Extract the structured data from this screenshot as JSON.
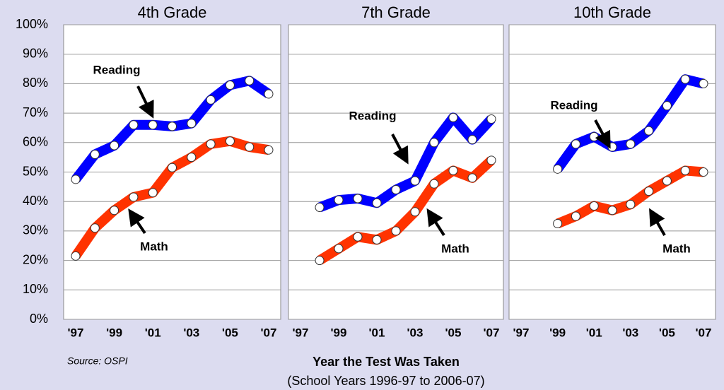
{
  "chart_data": [
    {
      "type": "line",
      "title": "4th Grade",
      "categories": [
        "'97",
        null,
        "'99",
        null,
        "'01",
        null,
        "'03",
        null,
        "'05",
        null,
        "'07"
      ],
      "series": [
        {
          "name": "Reading",
          "color": "#0000ff",
          "values": [
            47.5,
            56,
            59,
            66,
            66,
            65.5,
            66.5,
            74.5,
            79.5,
            81,
            76.5
          ]
        },
        {
          "name": "Math",
          "color": "#ff3300",
          "values": [
            21.5,
            31,
            37,
            41.5,
            43,
            51.5,
            55,
            59.5,
            60.5,
            58.5,
            57.5
          ]
        }
      ],
      "ylim": [
        0,
        100
      ],
      "yticks": [
        {
          "value": 0,
          "label": "0%"
        },
        {
          "value": 10,
          "label": "10%"
        },
        {
          "value": 20,
          "label": "20%"
        },
        {
          "value": 30,
          "label": "30%"
        },
        {
          "value": 40,
          "label": "40%"
        },
        {
          "value": 50,
          "label": "50%"
        },
        {
          "value": 60,
          "label": "60%"
        },
        {
          "value": 70,
          "label": "70%"
        },
        {
          "value": 80,
          "label": "80%"
        },
        {
          "value": 90,
          "label": "90%"
        },
        {
          "value": 100,
          "label": "100%"
        }
      ],
      "grid": true
    },
    {
      "type": "line",
      "title": "7th Grade",
      "categories": [
        "'97",
        null,
        "'99",
        null,
        "'01",
        null,
        "'03",
        null,
        "'05",
        null,
        "'07"
      ],
      "series": [
        {
          "name": "Reading",
          "color": "#0000ff",
          "values": [
            null,
            38,
            40.5,
            41,
            39.5,
            44,
            47,
            60,
            68.5,
            61,
            68
          ]
        },
        {
          "name": "Math",
          "color": "#ff3300",
          "values": [
            null,
            20,
            24,
            28,
            27,
            30,
            36.5,
            46,
            50.5,
            48,
            54
          ]
        }
      ],
      "ylim": [
        0,
        100
      ],
      "grid": true
    },
    {
      "type": "line",
      "title": "10th Grade",
      "categories": [
        "'97",
        null,
        "'99",
        null,
        "'01",
        null,
        "'03",
        null,
        "'05",
        null,
        "'07"
      ],
      "series": [
        {
          "name": "Reading",
          "color": "#0000ff",
          "values": [
            null,
            null,
            51,
            59.5,
            62,
            58.5,
            59.5,
            64,
            72.5,
            81.5,
            80
          ]
        },
        {
          "name": "Math",
          "color": "#ff3300",
          "values": [
            null,
            null,
            32.5,
            35,
            38.5,
            37,
            39,
            43.5,
            47,
            50.5,
            50
          ]
        }
      ],
      "ylim": [
        0,
        100
      ],
      "grid": true
    }
  ],
  "footer": {
    "source": "Source: OSPI",
    "x_label": "Year the Test Was Taken",
    "x_sublabel": "(School Years 1996-97 to 2006-07)"
  }
}
